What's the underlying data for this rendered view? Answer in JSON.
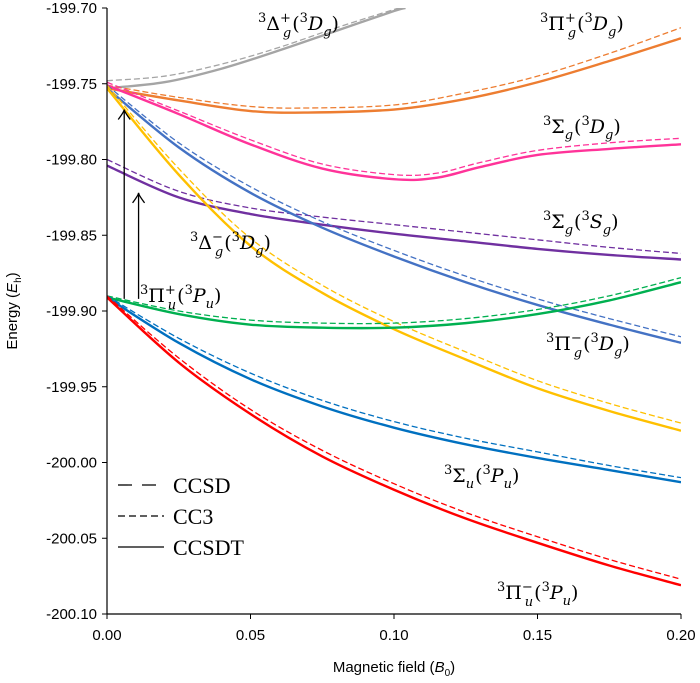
{
  "chart_data": {
    "type": "line",
    "title": "",
    "xlabel": {
      "main": "Magnetic field (",
      "italic": "B",
      "sub": "0",
      "close": ")"
    },
    "ylabel": {
      "main": "Energy (",
      "italic": "E",
      "sub": "h",
      "close": ")"
    },
    "xlim": [
      0.0,
      0.2
    ],
    "ylim": [
      -200.1,
      -199.7
    ],
    "x_tick_labels": [
      "0.00",
      "0.05",
      "0.10",
      "0.15",
      "0.20"
    ],
    "x_tick_values": [
      0.0,
      0.05,
      0.1,
      0.15,
      0.2
    ],
    "y_tick_labels": [
      "-199.70",
      "-199.75",
      "-199.80",
      "-199.85",
      "-199.90",
      "-199.95",
      "-200.00",
      "-200.05",
      "-200.10"
    ],
    "y_tick_values": [
      -199.7,
      -199.75,
      -199.8,
      -199.85,
      -199.9,
      -199.95,
      -200.0,
      -200.05,
      -200.1
    ],
    "grid": false,
    "legend": {
      "placement": "bottom-left",
      "entries": [
        {
          "label": "CCSD",
          "style": "long-dash"
        },
        {
          "label": "CC3",
          "style": "short-dash"
        },
        {
          "label": "CCSDT",
          "style": "solid"
        }
      ]
    },
    "series": [
      {
        "state": {
          "l": "Δ",
          "sub": "g",
          "sup": "+",
          "term": "D",
          "tsub": "g"
        },
        "color": "#a5a5a5",
        "x": [
          0.0,
          0.02,
          0.04,
          0.06,
          0.08,
          0.1,
          0.104
        ],
        "ccsdt": [
          -199.753,
          -199.749,
          -199.74,
          -199.728,
          -199.715,
          -199.702,
          -199.7
        ],
        "cc3": [
          -199.748,
          -199.745,
          -199.737,
          -199.726,
          -199.713,
          -199.701,
          -199.699
        ]
      },
      {
        "state": {
          "l": "Π",
          "sub": "g",
          "sup": "+",
          "term": "D",
          "tsub": "g"
        },
        "color": "#ed7d31",
        "x": [
          0.0,
          0.025,
          0.05,
          0.07,
          0.1,
          0.125,
          0.15,
          0.175,
          0.2
        ],
        "ccsdt": [
          -199.753,
          -199.761,
          -199.768,
          -199.769,
          -199.767,
          -199.76,
          -199.749,
          -199.735,
          -199.72
        ],
        "cc3": [
          -199.751,
          -199.759,
          -199.765,
          -199.766,
          -199.764,
          -199.756,
          -199.745,
          -199.73,
          -199.713
        ]
      },
      {
        "state": {
          "l": "Σ",
          "sub": "g",
          "sup": "",
          "term": "D",
          "tsub": "g"
        },
        "color": "#ff3399",
        "x": [
          0.0,
          0.025,
          0.05,
          0.075,
          0.1,
          0.115,
          0.13,
          0.15,
          0.175,
          0.2
        ],
        "ccsdt": [
          -199.751,
          -199.77,
          -199.79,
          -199.806,
          -199.813,
          -199.812,
          -199.805,
          -199.797,
          -199.793,
          -199.79
        ],
        "cc3": [
          -199.749,
          -199.768,
          -199.787,
          -199.803,
          -199.81,
          -199.809,
          -199.802,
          -199.794,
          -199.789,
          -199.786
        ]
      },
      {
        "state": {
          "l": "Σ",
          "sub": "g",
          "sup": "",
          "term": "S",
          "tsub": "g"
        },
        "color": "#7030a0",
        "x": [
          0.0,
          0.025,
          0.05,
          0.075,
          0.1,
          0.125,
          0.15,
          0.175,
          0.2
        ],
        "ccsdt": [
          -199.804,
          -199.825,
          -199.836,
          -199.843,
          -199.849,
          -199.854,
          -199.859,
          -199.863,
          -199.866
        ],
        "cc3": [
          -199.8,
          -199.821,
          -199.832,
          -199.838,
          -199.843,
          -199.848,
          -199.853,
          -199.858,
          -199.862
        ]
      },
      {
        "state": {
          "l": "Π",
          "sub": "g",
          "sup": "−",
          "term": "D",
          "tsub": "g"
        },
        "color": "#4472c4",
        "x": [
          0.0,
          0.025,
          0.05,
          0.075,
          0.1,
          0.125,
          0.15,
          0.175,
          0.2
        ],
        "ccsdt": [
          -199.753,
          -199.792,
          -199.822,
          -199.845,
          -199.864,
          -199.881,
          -199.896,
          -199.909,
          -199.921
        ],
        "cc3": [
          -199.751,
          -199.789,
          -199.818,
          -199.841,
          -199.86,
          -199.877,
          -199.892,
          -199.905,
          -199.917
        ]
      },
      {
        "state": {
          "l": "Δ",
          "sub": "g",
          "sup": "−",
          "term": "D",
          "tsub": "g"
        },
        "color": "#ffc000",
        "x": [
          0.0,
          0.025,
          0.05,
          0.075,
          0.1,
          0.125,
          0.15,
          0.175,
          0.2
        ],
        "ccsdt": [
          -199.753,
          -199.81,
          -199.857,
          -199.888,
          -199.912,
          -199.932,
          -199.951,
          -199.966,
          -199.979
        ],
        "cc3": [
          -199.751,
          -199.806,
          -199.852,
          -199.883,
          -199.907,
          -199.927,
          -199.946,
          -199.961,
          -199.974
        ]
      },
      {
        "state": {
          "l": "Π",
          "sub": "u",
          "sup": "+",
          "term": "P",
          "tsub": "u"
        },
        "color": "#00b050",
        "x": [
          0.0,
          0.025,
          0.05,
          0.075,
          0.1,
          0.125,
          0.15,
          0.175,
          0.2
        ],
        "ccsdt": [
          -199.891,
          -199.902,
          -199.909,
          -199.911,
          -199.911,
          -199.908,
          -199.902,
          -199.893,
          -199.881
        ],
        "cc3": [
          -199.89,
          -199.9,
          -199.906,
          -199.908,
          -199.908,
          -199.905,
          -199.899,
          -199.89,
          -199.878
        ]
      },
      {
        "state": {
          "l": "Σ",
          "sub": "u",
          "sup": "",
          "term": "P",
          "tsub": "u"
        },
        "color": "#0070c0",
        "x": [
          0.0,
          0.025,
          0.05,
          0.075,
          0.1,
          0.125,
          0.15,
          0.175,
          0.2
        ],
        "ccsdt": [
          -199.891,
          -199.921,
          -199.945,
          -199.963,
          -199.977,
          -199.988,
          -199.997,
          -200.005,
          -200.013
        ],
        "cc3": [
          -199.89,
          -199.918,
          -199.941,
          -199.959,
          -199.973,
          -199.984,
          -199.993,
          -200.002,
          -200.01
        ]
      },
      {
        "state": {
          "l": "Π",
          "sub": "u",
          "sup": "−",
          "term": "P",
          "tsub": "u"
        },
        "color": "#ff0000",
        "x": [
          0.0,
          0.025,
          0.05,
          0.075,
          0.1,
          0.125,
          0.15,
          0.175,
          0.2
        ],
        "ccsdt": [
          -199.891,
          -199.934,
          -199.968,
          -199.996,
          -200.018,
          -200.037,
          -200.053,
          -200.068,
          -200.081
        ],
        "cc3": [
          -199.89,
          -199.931,
          -199.965,
          -199.992,
          -200.014,
          -200.033,
          -200.049,
          -200.064,
          -200.077
        ]
      }
    ],
    "annotations": [
      {
        "type": "arrow",
        "from": [
          0.006,
          -199.892
        ],
        "to": [
          0.006,
          -199.767
        ]
      },
      {
        "type": "arrow",
        "from": [
          0.011,
          -199.892
        ],
        "to": [
          0.011,
          -199.822
        ]
      }
    ]
  }
}
